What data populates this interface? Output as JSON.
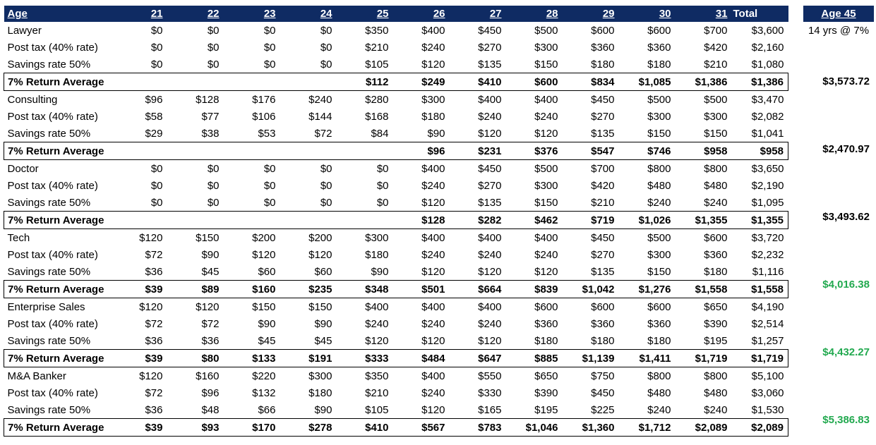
{
  "header": {
    "age_label": "Age",
    "years": [
      "21",
      "22",
      "23",
      "24",
      "25",
      "26",
      "27",
      "28",
      "29",
      "30",
      "31"
    ],
    "total_label": "Total"
  },
  "careers": [
    {
      "name": "Lawyer",
      "gross": [
        "$0",
        "$0",
        "$0",
        "$0",
        "$350",
        "$400",
        "$450",
        "$500",
        "$600",
        "$600",
        "$700",
        "$3,600"
      ],
      "post_tax_label": "Post tax (40% rate)",
      "post_tax": [
        "$0",
        "$0",
        "$0",
        "$0",
        "$210",
        "$240",
        "$270",
        "$300",
        "$360",
        "$360",
        "$420",
        "$2,160"
      ],
      "savings_label": "Savings rate 50%",
      "savings": [
        "$0",
        "$0",
        "$0",
        "$0",
        "$105",
        "$120",
        "$135",
        "$150",
        "$180",
        "$180",
        "$210",
        "$1,080"
      ],
      "avg_label": "7% Return Average",
      "avg": [
        "",
        "",
        "",
        "",
        "$112",
        "$249",
        "$410",
        "$600",
        "$834",
        "$1,085",
        "$1,386",
        "$1,386"
      ],
      "age45": "$3,573.72",
      "age45_highlight": false
    },
    {
      "name": "Consulting",
      "gross": [
        "$96",
        "$128",
        "$176",
        "$240",
        "$280",
        "$300",
        "$400",
        "$400",
        "$450",
        "$500",
        "$500",
        "$3,470"
      ],
      "post_tax_label": "Post tax (40% rate)",
      "post_tax": [
        "$58",
        "$77",
        "$106",
        "$144",
        "$168",
        "$180",
        "$240",
        "$240",
        "$270",
        "$300",
        "$300",
        "$2,082"
      ],
      "savings_label": "Savings rate 50%",
      "savings": [
        "$29",
        "$38",
        "$53",
        "$72",
        "$84",
        "$90",
        "$120",
        "$120",
        "$135",
        "$150",
        "$150",
        "$1,041"
      ],
      "avg_label": "7% Return Average",
      "avg": [
        "",
        "",
        "",
        "",
        "",
        "$96",
        "$231",
        "$376",
        "$547",
        "$746",
        "$958",
        "$958"
      ],
      "age45": "$2,470.97",
      "age45_highlight": false
    },
    {
      "name": "Doctor",
      "gross": [
        "$0",
        "$0",
        "$0",
        "$0",
        "$0",
        "$400",
        "$450",
        "$500",
        "$700",
        "$800",
        "$800",
        "$3,650"
      ],
      "post_tax_label": "Post tax (40% rate)",
      "post_tax": [
        "$0",
        "$0",
        "$0",
        "$0",
        "$0",
        "$240",
        "$270",
        "$300",
        "$420",
        "$480",
        "$480",
        "$2,190"
      ],
      "savings_label": "Savings rate 50%",
      "savings": [
        "$0",
        "$0",
        "$0",
        "$0",
        "$0",
        "$120",
        "$135",
        "$150",
        "$210",
        "$240",
        "$240",
        "$1,095"
      ],
      "avg_label": "7% Return Average",
      "avg": [
        "",
        "",
        "",
        "",
        "",
        "$128",
        "$282",
        "$462",
        "$719",
        "$1,026",
        "$1,355",
        "$1,355"
      ],
      "age45": "$3,493.62",
      "age45_highlight": false
    },
    {
      "name": "Tech",
      "gross": [
        "$120",
        "$150",
        "$200",
        "$200",
        "$300",
        "$400",
        "$400",
        "$400",
        "$450",
        "$500",
        "$600",
        "$3,720"
      ],
      "post_tax_label": "Post tax (40% rate)",
      "post_tax": [
        "$72",
        "$90",
        "$120",
        "$120",
        "$180",
        "$240",
        "$240",
        "$240",
        "$270",
        "$300",
        "$360",
        "$2,232"
      ],
      "savings_label": "Savings rate 50%",
      "savings": [
        "$36",
        "$45",
        "$60",
        "$60",
        "$90",
        "$120",
        "$120",
        "$120",
        "$135",
        "$150",
        "$180",
        "$1,116"
      ],
      "avg_label": "7% Return Average",
      "avg": [
        "$39",
        "$89",
        "$160",
        "$235",
        "$348",
        "$501",
        "$664",
        "$839",
        "$1,042",
        "$1,276",
        "$1,558",
        "$1,558"
      ],
      "age45": "$4,016.38",
      "age45_highlight": true
    },
    {
      "name": "Enterprise Sales",
      "gross": [
        "$120",
        "$120",
        "$150",
        "$150",
        "$400",
        "$400",
        "$400",
        "$600",
        "$600",
        "$600",
        "$650",
        "$4,190"
      ],
      "post_tax_label": "Post tax (40% rate)",
      "post_tax": [
        "$72",
        "$72",
        "$90",
        "$90",
        "$240",
        "$240",
        "$240",
        "$360",
        "$360",
        "$360",
        "$390",
        "$2,514"
      ],
      "savings_label": "Savings rate 50%",
      "savings": [
        "$36",
        "$36",
        "$45",
        "$45",
        "$120",
        "$120",
        "$120",
        "$180",
        "$180",
        "$180",
        "$195",
        "$1,257"
      ],
      "avg_label": "7% Return Average",
      "avg": [
        "$39",
        "$80",
        "$133",
        "$191",
        "$333",
        "$484",
        "$647",
        "$885",
        "$1,139",
        "$1,411",
        "$1,719",
        "$1,719"
      ],
      "age45": "$4,432.27",
      "age45_highlight": true
    },
    {
      "name": "M&A Banker",
      "gross": [
        "$120",
        "$160",
        "$220",
        "$300",
        "$350",
        "$400",
        "$550",
        "$650",
        "$750",
        "$800",
        "$800",
        "$5,100"
      ],
      "post_tax_label": "Post tax (40% rate)",
      "post_tax": [
        "$72",
        "$96",
        "$132",
        "$180",
        "$210",
        "$240",
        "$330",
        "$390",
        "$450",
        "$480",
        "$480",
        "$3,060"
      ],
      "savings_label": "Savings rate 50%",
      "savings": [
        "$36",
        "$48",
        "$66",
        "$90",
        "$105",
        "$120",
        "$165",
        "$195",
        "$225",
        "$240",
        "$240",
        "$1,530"
      ],
      "avg_label": "7% Return Average",
      "avg": [
        "$39",
        "$93",
        "$170",
        "$278",
        "$410",
        "$567",
        "$783",
        "$1,046",
        "$1,360",
        "$1,712",
        "$2,089",
        "$2,089"
      ],
      "age45": "$5,386.83",
      "age45_highlight": true
    }
  ],
  "side": {
    "header": "Age 45",
    "note": "14 yrs @ 7%"
  },
  "colors": {
    "header_bg": "#0f2b63",
    "header_text": "#ffffff",
    "highlight_green": "#22a94f"
  }
}
